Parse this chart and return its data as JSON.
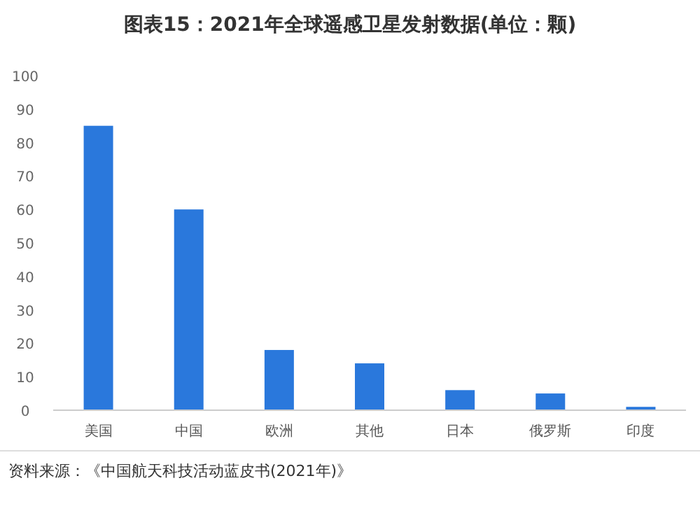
{
  "chart_data": {
    "type": "bar",
    "title": "图表15：2021年全球遥感卫星发射数据(单位：颗)",
    "categories": [
      "美国",
      "中国",
      "欧洲",
      "其他",
      "日本",
      "俄罗斯",
      "印度"
    ],
    "values": [
      85,
      60,
      18,
      14,
      6,
      5,
      1
    ],
    "color": "#2a78dc",
    "ylim": [
      0,
      100
    ],
    "yticks": [
      0,
      10,
      20,
      30,
      40,
      50,
      60,
      70,
      80,
      90,
      100
    ],
    "grid": false,
    "annotations": [
      "资料来源：《中国航天科技活动蓝皮书(2021年)》"
    ]
  }
}
